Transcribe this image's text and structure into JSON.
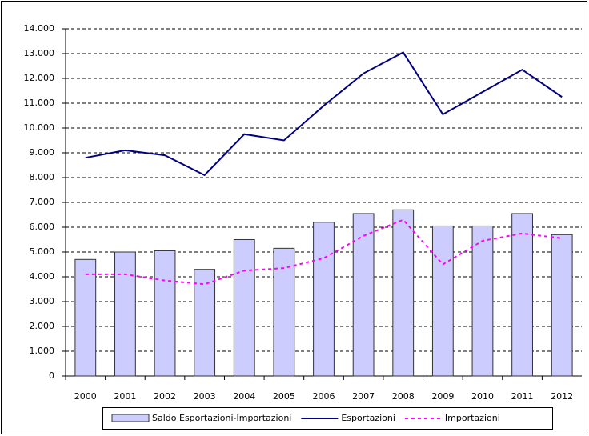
{
  "chart_data": {
    "type": "bar",
    "categories": [
      "2000",
      "2001",
      "2002",
      "2003",
      "2004",
      "2005",
      "2006",
      "2007",
      "2008",
      "2009",
      "2010",
      "2011",
      "2012"
    ],
    "series": [
      {
        "name": "Saldo Esportazioni-Importazioni",
        "type": "bar",
        "color": "#ccccff",
        "values": [
          4700,
          5000,
          5050,
          4300,
          5500,
          5150,
          6200,
          6550,
          6700,
          6050,
          6050,
          6550,
          5700
        ]
      },
      {
        "name": "Esportazioni",
        "type": "line",
        "color": "#000080",
        "values": [
          8800,
          9100,
          8900,
          8100,
          9750,
          9500,
          10900,
          12200,
          13050,
          10550,
          11450,
          12350,
          11250
        ]
      },
      {
        "name": "Importazioni",
        "type": "line",
        "color": "#ff00ff",
        "dashed": true,
        "values": [
          4100,
          4100,
          3850,
          3700,
          4250,
          4350,
          4750,
          5650,
          6300,
          4500,
          5450,
          5750,
          5550
        ]
      }
    ],
    "ylim": [
      0,
      14000
    ],
    "yticks": [
      0,
      {
        "value": 1000,
        "label": "1.000"
      },
      {
        "value": 2000,
        "label": "2.000"
      },
      {
        "value": 3000,
        "label": "3.000"
      },
      {
        "value": 4000,
        "label": "4.000"
      },
      {
        "value": 5000,
        "label": "5.000"
      },
      {
        "value": 6000,
        "label": "6.000"
      },
      {
        "value": 7000,
        "label": "7.000"
      },
      {
        "value": 8000,
        "label": "8.000"
      },
      {
        "value": 9000,
        "label": "9.000"
      },
      {
        "value": 10000,
        "label": "10.000"
      },
      {
        "value": 11000,
        "label": "11.000"
      },
      {
        "value": 12000,
        "label": "12.000"
      },
      {
        "value": 13000,
        "label": "13.000"
      },
      {
        "value": 14000,
        "label": "14.000"
      }
    ],
    "grid": true,
    "legend": "bottom"
  }
}
